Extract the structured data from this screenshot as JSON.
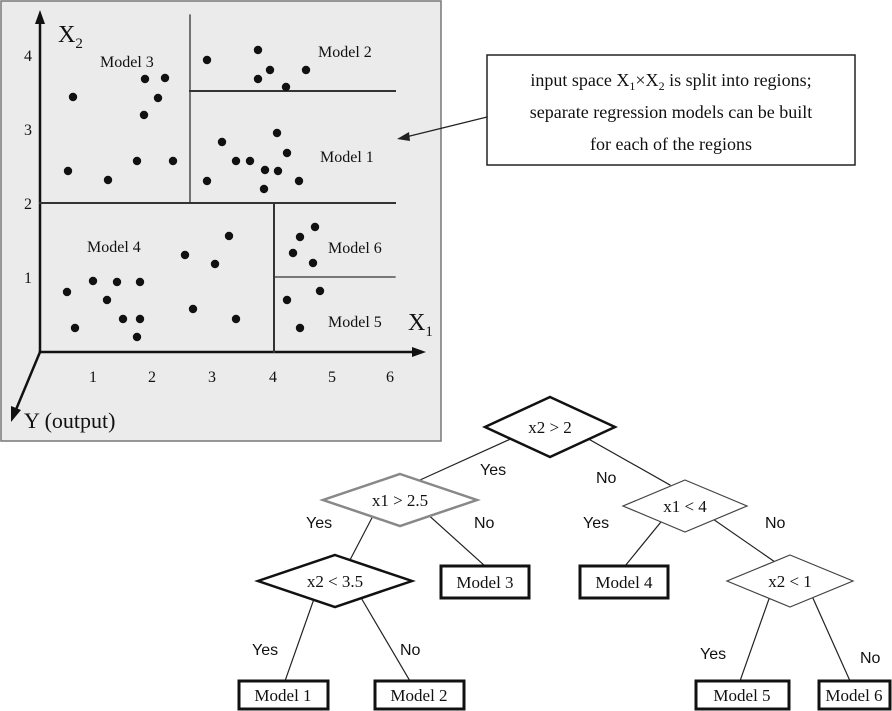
{
  "plot": {
    "y_axis_label": {
      "letter": "X",
      "subscript": "2"
    },
    "x_axis_label": {
      "letter": "X",
      "subscript": "1"
    },
    "output_axis_label": "Y (output)",
    "x_ticks": [
      1,
      2,
      3,
      4,
      5,
      6
    ],
    "y_ticks": [
      1,
      2,
      3,
      4
    ],
    "regions": [
      "Model 3",
      "Model 2",
      "Model 1",
      "Model 4",
      "Model 6",
      "Model 5"
    ]
  },
  "callout": {
    "lines": [
      [
        "input space X",
        "1",
        "×X",
        "2",
        " is split into regions;"
      ],
      [
        "separate regression models can be built"
      ],
      [
        "for each of the regions"
      ]
    ]
  },
  "tree": {
    "nodes": [
      "x2 > 2",
      "x1 > 2.5",
      "x1 < 4",
      "x2 < 3.5",
      "x2 < 1"
    ],
    "leaves": [
      "Model 3",
      "Model 4",
      "Model 1",
      "Model 2",
      "Model 5",
      "Model 6"
    ],
    "edge_labels": [
      "Yes",
      "No",
      "Yes",
      "No",
      "Yes",
      "No",
      "Yes",
      "No",
      "Yes",
      "No"
    ]
  }
}
